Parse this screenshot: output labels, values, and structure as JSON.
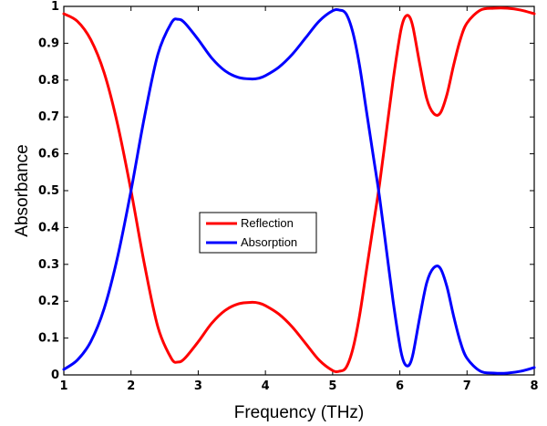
{
  "chart_data": {
    "type": "line",
    "xlabel": "Frequency (THz)",
    "ylabel": "Absorbance",
    "xlim": [
      1,
      8
    ],
    "ylim": [
      0,
      1
    ],
    "xticks": [
      "1",
      "2",
      "3",
      "4",
      "5",
      "6",
      "7",
      "8"
    ],
    "yticks": [
      "0",
      "0.1",
      "0.2",
      "0.3",
      "0.4",
      "0.5",
      "0.6",
      "0.7",
      "0.8",
      "0.9",
      "1"
    ],
    "grid": false,
    "legend_position": "center",
    "series": [
      {
        "name": "Reflection",
        "color": "#ff0000",
        "x": [
          1.0,
          1.2,
          1.4,
          1.6,
          1.8,
          2.0,
          2.2,
          2.4,
          2.6,
          2.7,
          2.8,
          3.0,
          3.2,
          3.4,
          3.6,
          3.8,
          3.9,
          4.0,
          4.2,
          4.4,
          4.6,
          4.8,
          5.0,
          5.1,
          5.2,
          5.3,
          5.4,
          5.5,
          5.6,
          5.7,
          5.8,
          5.9,
          6.0,
          6.05,
          6.1,
          6.15,
          6.2,
          6.3,
          6.4,
          6.5,
          6.6,
          6.7,
          6.8,
          6.9,
          7.0,
          7.2,
          7.4,
          7.6,
          7.8,
          8.0
        ],
        "y": [
          0.98,
          0.96,
          0.91,
          0.82,
          0.68,
          0.5,
          0.3,
          0.13,
          0.045,
          0.035,
          0.045,
          0.09,
          0.14,
          0.175,
          0.193,
          0.197,
          0.195,
          0.188,
          0.165,
          0.13,
          0.085,
          0.04,
          0.012,
          0.01,
          0.02,
          0.07,
          0.16,
          0.28,
          0.4,
          0.52,
          0.66,
          0.8,
          0.92,
          0.96,
          0.975,
          0.97,
          0.94,
          0.84,
          0.75,
          0.71,
          0.71,
          0.76,
          0.84,
          0.91,
          0.955,
          0.99,
          0.995,
          0.995,
          0.99,
          0.98
        ]
      },
      {
        "name": "Absorption",
        "color": "#0000ff",
        "x": [
          1.0,
          1.2,
          1.4,
          1.6,
          1.8,
          2.0,
          2.2,
          2.4,
          2.6,
          2.7,
          2.8,
          3.0,
          3.2,
          3.4,
          3.6,
          3.8,
          3.9,
          4.0,
          4.2,
          4.4,
          4.6,
          4.8,
          5.0,
          5.1,
          5.2,
          5.3,
          5.4,
          5.5,
          5.6,
          5.7,
          5.8,
          5.9,
          6.0,
          6.05,
          6.1,
          6.15,
          6.2,
          6.3,
          6.4,
          6.5,
          6.6,
          6.7,
          6.8,
          6.9,
          7.0,
          7.2,
          7.4,
          7.6,
          7.8,
          8.0
        ],
        "y": [
          0.015,
          0.04,
          0.09,
          0.18,
          0.32,
          0.5,
          0.7,
          0.87,
          0.955,
          0.965,
          0.955,
          0.91,
          0.86,
          0.825,
          0.807,
          0.803,
          0.805,
          0.812,
          0.835,
          0.87,
          0.915,
          0.96,
          0.988,
          0.99,
          0.98,
          0.93,
          0.84,
          0.72,
          0.6,
          0.48,
          0.34,
          0.2,
          0.08,
          0.04,
          0.025,
          0.03,
          0.06,
          0.16,
          0.25,
          0.29,
          0.29,
          0.24,
          0.16,
          0.09,
          0.045,
          0.01,
          0.005,
          0.005,
          0.01,
          0.02
        ]
      }
    ]
  }
}
